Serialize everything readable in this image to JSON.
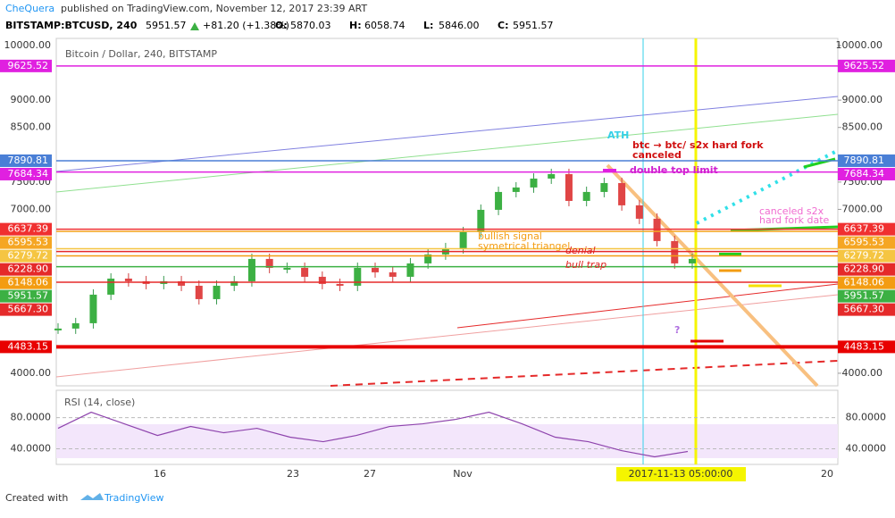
{
  "header": {
    "author": "CheQuera",
    "published": "published on TradingView.com, November 12, 2017 23:39 ART",
    "symbol": "BITSTAMP:BTCUSD, 240",
    "last": "5951.57",
    "change": "+81.20 (+1.38%)",
    "ohlc": [
      {
        "label": "O:",
        "value": "5870.03"
      },
      {
        "label": "H:",
        "value": "6058.74"
      },
      {
        "label": "L:",
        "value": "5846.00"
      },
      {
        "label": "C:",
        "value": "5951.57"
      }
    ]
  },
  "main_pane": {
    "title": "Bitcoin / Dollar, 240, BITSTAMP",
    "ylim": [
      3770,
      10130
    ],
    "yticks": [
      {
        "value": 10000,
        "label": "10000.00"
      },
      {
        "value": 9000,
        "label": "9000.00"
      },
      {
        "value": 8500,
        "label": "8500.00"
      },
      {
        "value": 7500,
        "label": "7500.00"
      },
      {
        "value": 7000,
        "label": "7000.00"
      },
      {
        "value": 4000,
        "label": "4000.00"
      }
    ],
    "levels": [
      {
        "value": 9625.52,
        "label": "9625.52",
        "color": "#e020e0"
      },
      {
        "value": 7890.81,
        "label": "7890.81",
        "color": "#4a7fd6"
      },
      {
        "value": 7684.34,
        "label": "7684.34",
        "color": "#e020e0"
      },
      {
        "value": 6637.39,
        "label": "6637.39",
        "color": "#f03030"
      },
      {
        "value": 6595.53,
        "label": "6595.53",
        "color": "#f5a623"
      },
      {
        "value": 6279.72,
        "label": "6279.72",
        "color": "#f5c542"
      },
      {
        "value": 6228.9,
        "label": "6228.90",
        "color": "#e52a2a"
      },
      {
        "value": 6148.06,
        "label": "6148.06",
        "color": "#f39c12"
      },
      {
        "value": 5951.57,
        "label": "5951.57",
        "color": "#3cb043"
      },
      {
        "value": 5667.3,
        "label": "5667.30",
        "color": "#e52a2a"
      },
      {
        "value": 4483.15,
        "label": "4483.15",
        "color": "#e80000"
      }
    ],
    "price_estimates": [
      4818,
      4916,
      5439,
      5733,
      5684,
      5635,
      5684,
      5602,
      5357,
      5602,
      5684,
      6093,
      5929,
      5929,
      5766,
      5635,
      5602,
      5929,
      5848,
      5766,
      6011,
      6175,
      6289,
      6583,
      6992,
      7319,
      7401,
      7564,
      7646,
      7155,
      7319,
      7482,
      7074,
      6829,
      6420,
      6011,
      6093
    ],
    "annotations": [
      {
        "text": "ATH",
        "color": "#35d0e8"
      },
      {
        "text": "btc → btc/ s2x hard fork",
        "color": "#d01010"
      },
      {
        "text": "canceled",
        "color": "#d01010"
      },
      {
        "text": "double top limit",
        "color": "#d020d0"
      },
      {
        "text": "denial",
        "color": "#e02020"
      },
      {
        "text": "bull trap",
        "color": "#e02020"
      },
      {
        "text": "bullish signal",
        "color": "#f39c12"
      },
      {
        "text": "symetrical triangel",
        "color": "#f39c12"
      },
      {
        "text": "canceled s2x",
        "color": "#f06cd0"
      },
      {
        "text": "hard fork date",
        "color": "#f06cd0"
      },
      {
        "text": "?",
        "color": "#b070e0"
      }
    ]
  },
  "rsi_pane": {
    "title": "RSI (14, close)",
    "ylim": [
      20,
      115
    ],
    "yticks": [
      {
        "value": 80,
        "label": "80.0000"
      },
      {
        "value": 40,
        "label": "40.0000"
      }
    ],
    "values": [
      66.3,
      86.9,
      72,
      57.1,
      68.6,
      60.6,
      66.3,
      54.9,
      49.1,
      57.1,
      68.6,
      72,
      77.7,
      86.9,
      72,
      54.9,
      49.1,
      37.7,
      29.7,
      36.6
    ]
  },
  "x_axis": {
    "labels": [
      "16",
      "23",
      "27",
      "Nov",
      "2017-11-13 05:00:00",
      "20"
    ]
  },
  "footer": {
    "created": "Created with",
    "brand": "TradingView"
  }
}
